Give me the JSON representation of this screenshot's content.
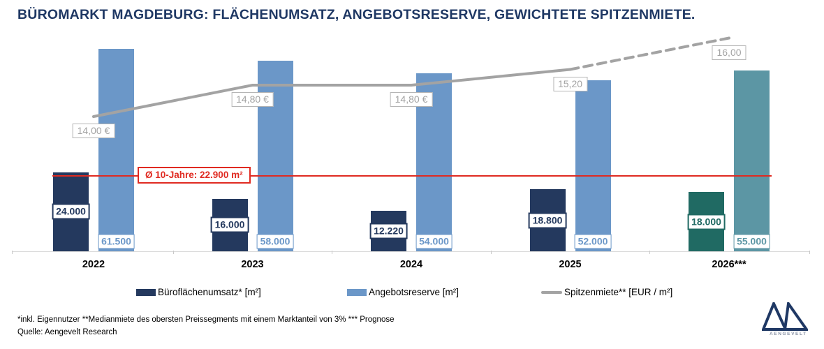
{
  "title": "BÜROMARKT MAGDEBURG: FLÄCHENUMSATZ, ANGEBOTSRESERVE, GEWICHTETE SPITZENMIETE.",
  "colors": {
    "title_navy": "#1f3864",
    "bar_dark": "#24395e",
    "bar_light": "#6b97c8",
    "bar_dark_forecast": "#206a63",
    "bar_light_forecast": "#5c96a4",
    "line_gray": "#a3a3a3",
    "avg_red": "#e02a21",
    "axis_gray": "#d9d9d9"
  },
  "chart_data": {
    "type": "bar",
    "subtype": "grouped bars with secondary line series",
    "categories": [
      "2022",
      "2023",
      "2024",
      "2025",
      "2026***"
    ],
    "series": [
      {
        "name": "Büroflächenumsatz* [m²]",
        "type": "bar",
        "values": [
          24000,
          16000,
          12220,
          18800,
          18000
        ],
        "labels": [
          "24.000",
          "16.000",
          "12.220",
          "18.800",
          "18.000"
        ],
        "forecast_index": 4
      },
      {
        "name": "Angebotsreserve [m²]",
        "type": "bar",
        "values": [
          61500,
          58000,
          54000,
          52000,
          55000
        ],
        "labels": [
          "61.500",
          "58.000",
          "54.000",
          "52.000",
          "55.000"
        ],
        "forecast_index": 4
      },
      {
        "name": "Spitzenmiete** [EUR / m²]",
        "type": "line",
        "values": [
          14.0,
          14.8,
          14.8,
          15.2,
          16.0
        ],
        "labels": [
          "14,00 €",
          "14,80 €",
          "14,80 €",
          "15,20",
          "16,00"
        ],
        "dashed_from_index": 3
      }
    ],
    "average_line": {
      "label": "Ø 10-Jahre: 22.900 m²",
      "value": 22900
    },
    "ylim": [
      0,
      63000
    ],
    "y2lim": [
      13.0,
      17.0
    ],
    "grid": false,
    "legend_position": "bottom"
  },
  "footnotes": {
    "line1": "*inkl. Eigennutzer **Medianmiete des obersten Preissegments mit einem Marktanteil von 3% *** Prognose",
    "line2": "Quelle: Aengevelt Research"
  },
  "logo": {
    "text": "AENGEVELT",
    "glyph": "aengevelt-double-triangle-icon"
  }
}
